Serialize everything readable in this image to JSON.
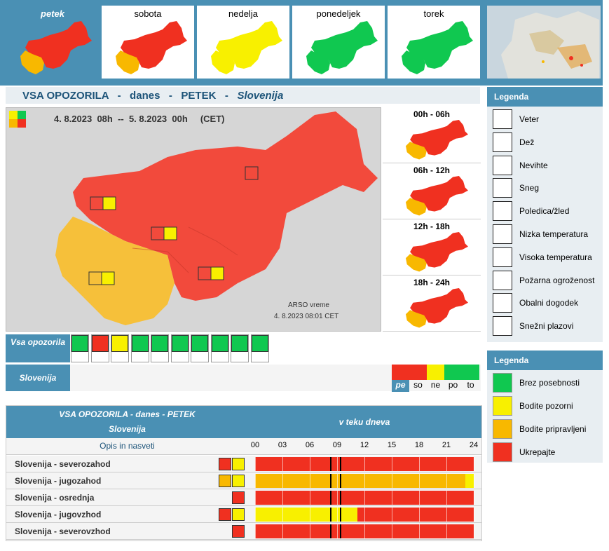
{
  "days": [
    {
      "label": "petek",
      "active": true,
      "colors": [
        "#f03020",
        "#f8b800"
      ]
    },
    {
      "label": "sobota",
      "active": false,
      "colors": [
        "#f03020",
        "#f8b800"
      ]
    },
    {
      "label": "nedelja",
      "active": false,
      "colors": [
        "#f8f000",
        "#f8f000"
      ]
    },
    {
      "label": "ponedeljek",
      "active": false,
      "colors": [
        "#10c850",
        "#10c850"
      ]
    },
    {
      "label": "torek",
      "active": false,
      "colors": [
        "#10c850",
        "#10c850"
      ]
    }
  ],
  "title": "VSA OPOZORILA   -   danes   -   PETEK   -   ",
  "title_region": "Slovenija",
  "map": {
    "period": "4. 8.2023  08h  --  5. 8.2023  00h     (CET)",
    "credit_1": "ARSO vreme",
    "credit_2": "4. 8.2023  08:01 CET"
  },
  "periods": [
    {
      "label": "00h - 06h"
    },
    {
      "label": "06h - 12h"
    },
    {
      "label": "12h - 18h"
    },
    {
      "label": "18h - 24h"
    }
  ],
  "vsa_label": "Vsa opozorila",
  "slovenija_label": "Slovenija",
  "warning_icons": [
    {
      "name": "veter-icon",
      "color": "#10c850"
    },
    {
      "name": "dez-icon",
      "color": "#f03020"
    },
    {
      "name": "nevihte-icon",
      "color": "#f8f000"
    },
    {
      "name": "sneg-icon",
      "color": "#10c850"
    },
    {
      "name": "poledica-icon",
      "color": "#10c850"
    },
    {
      "name": "nizka-temp-icon",
      "color": "#10c850"
    },
    {
      "name": "visoka-temp-icon",
      "color": "#10c850"
    },
    {
      "name": "pozar-icon",
      "color": "#10c850"
    },
    {
      "name": "obalni-icon",
      "color": "#10c850"
    },
    {
      "name": "plazovi-icon",
      "color": "#10c850"
    }
  ],
  "day_squares": [
    {
      "label": "pe",
      "color": "#f03020",
      "active": true
    },
    {
      "label": "so",
      "color": "#f03020",
      "active": false
    },
    {
      "label": "ne",
      "color": "#f8f000",
      "active": false
    },
    {
      "label": "po",
      "color": "#10c850",
      "active": false
    },
    {
      "label": "to",
      "color": "#10c850",
      "active": false
    }
  ],
  "table": {
    "head_title": "VSA OPOZORILA - danes - PETEK",
    "head_region": "Slovenija",
    "head_right": "v teku dneva",
    "opis": "Opis in nasveti",
    "hours": [
      "00",
      "03",
      "06",
      "09",
      "12",
      "15",
      "18",
      "21",
      "24"
    ],
    "now_hours": [
      8.25,
      9.3
    ],
    "rows": [
      {
        "name": "Slovenija - severozahod",
        "icons": [
          "#f03020",
          "#f8f000"
        ],
        "segments": [
          {
            "from": 0,
            "to": 24,
            "color": "#f03020"
          }
        ]
      },
      {
        "name": "Slovenija - jugozahod",
        "icons": [
          "#f8b800",
          "#f8f000"
        ],
        "segments": [
          {
            "from": 0,
            "to": 23.1,
            "color": "#f8b800"
          },
          {
            "from": 23.1,
            "to": 24,
            "color": "#f8f000"
          }
        ]
      },
      {
        "name": "Slovenija - osrednja",
        "icons": [
          "#f03020"
        ],
        "segments": [
          {
            "from": 0,
            "to": 24,
            "color": "#f03020"
          }
        ]
      },
      {
        "name": "Slovenija - jugovzhod",
        "icons": [
          "#f03020",
          "#f8f000"
        ],
        "segments": [
          {
            "from": 0,
            "to": 11.2,
            "color": "#f8f000"
          },
          {
            "from": 11.2,
            "to": 24,
            "color": "#f03020"
          }
        ]
      },
      {
        "name": "Slovenija - severovzhod",
        "icons": [
          "#f03020"
        ],
        "segments": [
          {
            "from": 0,
            "to": 24,
            "color": "#f03020"
          }
        ]
      }
    ]
  },
  "legend1": {
    "title": "Legenda",
    "items": [
      {
        "label": "Veter",
        "icon": "wind-icon"
      },
      {
        "label": "Dež",
        "icon": "rain-icon"
      },
      {
        "label": "Nevihte",
        "icon": "lightning-icon"
      },
      {
        "label": "Sneg",
        "icon": "snow-icon"
      },
      {
        "label": "Poledica/žled",
        "icon": "ice-icon"
      },
      {
        "label": "Nizka temperatura",
        "icon": "low-temp-icon"
      },
      {
        "label": "Visoka temperatura",
        "icon": "high-temp-icon"
      },
      {
        "label": "Požarna ogroženost",
        "icon": "fire-icon"
      },
      {
        "label": "Obalni dogodek",
        "icon": "coastal-icon"
      },
      {
        "label": "Snežni plazovi",
        "icon": "avalanche-icon"
      }
    ]
  },
  "legend2": {
    "title": "Legenda",
    "items": [
      {
        "label": "Brez posebnosti",
        "color": "#10c850"
      },
      {
        "label": "Bodite pozorni",
        "color": "#f8f000"
      },
      {
        "label": "Bodite pripravljeni",
        "color": "#f8b800"
      },
      {
        "label": "Ukrepajte",
        "color": "#f03020"
      }
    ]
  }
}
